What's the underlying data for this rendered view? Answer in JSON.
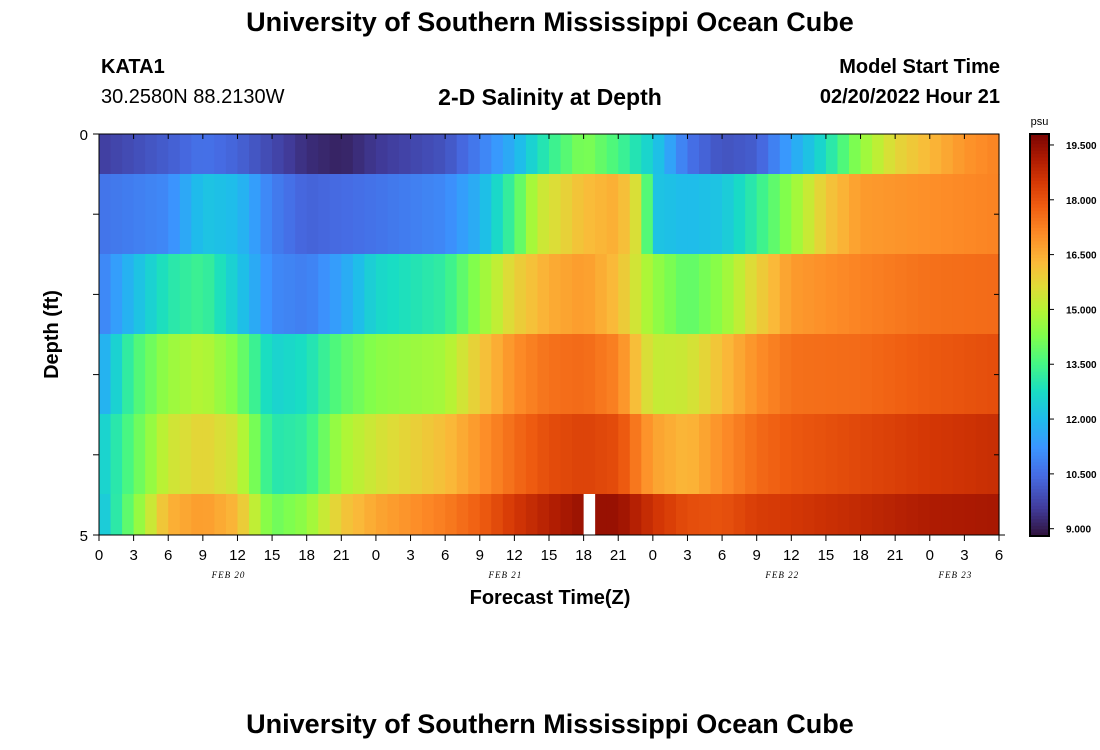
{
  "page": {
    "title": "University of Southern Mississippi Ocean Cube",
    "footer_title": "University of Southern Mississippi Ocean Cube",
    "station": {
      "name": "KATA1",
      "coords": "30.2580N  88.2130W"
    },
    "model_start": {
      "label": "Model Start Time",
      "value": "02/20/2022 Hour 21"
    }
  },
  "chart_data": {
    "type": "heatmap",
    "title": "2-D Salinity at Depth",
    "xlabel": "Forecast Time(Z)",
    "ylabel": "Depth (ft)",
    "y_tick_labels": [
      "0",
      "5"
    ],
    "ylim": [
      0,
      5
    ],
    "x_tick_labels": [
      "0",
      "3",
      "6",
      "9",
      "12",
      "15",
      "18",
      "21",
      "0",
      "3",
      "6",
      "9",
      "12",
      "15",
      "18",
      "21",
      "0",
      "3",
      "6",
      "9",
      "12",
      "15",
      "18",
      "21",
      "0",
      "3",
      "6"
    ],
    "day_labels": [
      {
        "label": "FEB 20",
        "hour": 12
      },
      {
        "label": "FEB 21",
        "hour": 36
      },
      {
        "label": "FEB 22",
        "hour": 60
      },
      {
        "label": "FEB 23",
        "hour": 75
      }
    ],
    "hours_range": [
      0,
      78
    ],
    "colorbar": {
      "unit": "psu",
      "min": 8.8,
      "max": 19.8,
      "tick_labels": [
        "19.500",
        "18.000",
        "16.500",
        "15.000",
        "13.500",
        "12.000",
        "10.500",
        "9.000"
      ],
      "tick_values": [
        19.5,
        18.0,
        16.5,
        15.0,
        13.5,
        12.0,
        10.5,
        9.0
      ]
    },
    "gap": {
      "layer": 5,
      "hour": 42.5
    },
    "layers": [
      {
        "depth_band": "0.0-0.5 ft",
        "keyframes": [
          [
            0,
            9.6
          ],
          [
            6,
            10.2
          ],
          [
            9,
            10.6
          ],
          [
            12,
            10.3
          ],
          [
            18,
            9.3
          ],
          [
            21,
            9.1
          ],
          [
            24,
            9.5
          ],
          [
            30,
            10.0
          ],
          [
            33,
            10.8
          ],
          [
            36,
            11.8
          ],
          [
            39,
            13.2
          ],
          [
            42,
            14.3
          ],
          [
            45,
            13.5
          ],
          [
            48,
            12.4
          ],
          [
            51,
            10.6
          ],
          [
            54,
            10.0
          ],
          [
            57,
            10.2
          ],
          [
            60,
            11.5
          ],
          [
            63,
            12.8
          ],
          [
            66,
            14.5
          ],
          [
            69,
            15.7
          ],
          [
            72,
            16.3
          ],
          [
            75,
            16.9
          ],
          [
            78,
            17.2
          ]
        ]
      },
      {
        "depth_band": "0.5-1.5 ft",
        "keyframes": [
          [
            0,
            10.6
          ],
          [
            6,
            11.0
          ],
          [
            9,
            12.2
          ],
          [
            12,
            12.0
          ],
          [
            15,
            10.8
          ],
          [
            18,
            10.3
          ],
          [
            24,
            10.6
          ],
          [
            30,
            11.0
          ],
          [
            33,
            11.8
          ],
          [
            36,
            13.5
          ],
          [
            38,
            15.2
          ],
          [
            42,
            16.2
          ],
          [
            45,
            16.5
          ],
          [
            47,
            15.2
          ],
          [
            48,
            12.2
          ],
          [
            51,
            12.0
          ],
          [
            54,
            12.2
          ],
          [
            57,
            13.2
          ],
          [
            60,
            14.5
          ],
          [
            63,
            16.0
          ],
          [
            66,
            16.8
          ],
          [
            72,
            17.0
          ],
          [
            78,
            17.2
          ]
        ]
      },
      {
        "depth_band": "1.5-2.5 ft",
        "keyframes": [
          [
            0,
            10.8
          ],
          [
            3,
            12.0
          ],
          [
            6,
            13.0
          ],
          [
            9,
            13.4
          ],
          [
            12,
            12.3
          ],
          [
            15,
            11.0
          ],
          [
            18,
            10.8
          ],
          [
            21,
            11.5
          ],
          [
            24,
            12.6
          ],
          [
            30,
            13.2
          ],
          [
            33,
            14.5
          ],
          [
            36,
            15.8
          ],
          [
            39,
            16.5
          ],
          [
            42,
            16.8
          ],
          [
            45,
            16.2
          ],
          [
            48,
            14.6
          ],
          [
            51,
            13.8
          ],
          [
            54,
            14.5
          ],
          [
            57,
            15.8
          ],
          [
            60,
            16.8
          ],
          [
            66,
            17.2
          ],
          [
            72,
            17.5
          ],
          [
            78,
            17.6
          ]
        ]
      },
      {
        "depth_band": "2.5-3.5 ft",
        "keyframes": [
          [
            0,
            11.5
          ],
          [
            3,
            13.5
          ],
          [
            6,
            14.6
          ],
          [
            9,
            15.0
          ],
          [
            12,
            14.2
          ],
          [
            15,
            12.5
          ],
          [
            18,
            12.8
          ],
          [
            21,
            13.8
          ],
          [
            24,
            14.4
          ],
          [
            30,
            14.8
          ],
          [
            33,
            16.0
          ],
          [
            36,
            17.0
          ],
          [
            39,
            17.5
          ],
          [
            42,
            17.6
          ],
          [
            45,
            17.2
          ],
          [
            48,
            15.2
          ],
          [
            51,
            15.3
          ],
          [
            54,
            16.2
          ],
          [
            57,
            17.0
          ],
          [
            60,
            17.5
          ],
          [
            66,
            17.6
          ],
          [
            72,
            17.9
          ],
          [
            78,
            18.1
          ]
        ]
      },
      {
        "depth_band": "3.5-4.5 ft",
        "keyframes": [
          [
            0,
            12.3
          ],
          [
            3,
            13.8
          ],
          [
            6,
            15.3
          ],
          [
            9,
            15.8
          ],
          [
            12,
            15.3
          ],
          [
            15,
            13.0
          ],
          [
            18,
            13.2
          ],
          [
            21,
            14.8
          ],
          [
            24,
            15.4
          ],
          [
            30,
            16.2
          ],
          [
            33,
            16.9
          ],
          [
            36,
            17.6
          ],
          [
            39,
            18.1
          ],
          [
            42,
            18.3
          ],
          [
            45,
            18.1
          ],
          [
            48,
            16.7
          ],
          [
            51,
            16.3
          ],
          [
            54,
            17.0
          ],
          [
            57,
            17.6
          ],
          [
            60,
            17.9
          ],
          [
            66,
            18.2
          ],
          [
            72,
            18.5
          ],
          [
            78,
            18.7
          ]
        ]
      },
      {
        "depth_band": "4.5-5.0 ft",
        "keyframes": [
          [
            0,
            12.0
          ],
          [
            3,
            14.2
          ],
          [
            6,
            16.4
          ],
          [
            9,
            16.8
          ],
          [
            12,
            16.3
          ],
          [
            15,
            14.0
          ],
          [
            18,
            14.5
          ],
          [
            21,
            16.0
          ],
          [
            24,
            16.6
          ],
          [
            30,
            17.3
          ],
          [
            33,
            17.8
          ],
          [
            36,
            18.5
          ],
          [
            39,
            19.0
          ],
          [
            42,
            19.4
          ],
          [
            45,
            19.4
          ],
          [
            48,
            18.6
          ],
          [
            51,
            18.1
          ],
          [
            54,
            18.0
          ],
          [
            57,
            18.4
          ],
          [
            60,
            18.5
          ],
          [
            66,
            18.8
          ],
          [
            72,
            19.1
          ],
          [
            78,
            19.2
          ]
        ]
      }
    ]
  }
}
